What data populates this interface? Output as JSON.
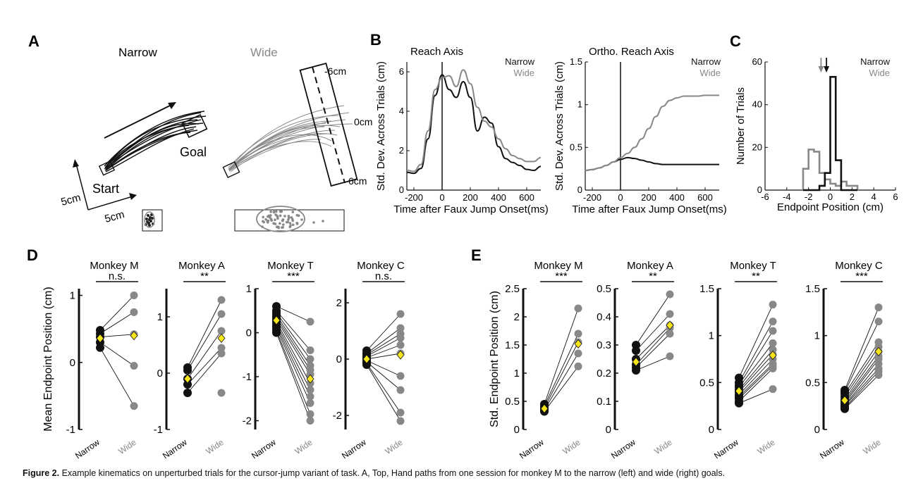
{
  "panel_labels": {
    "A": "A",
    "B": "B",
    "C": "C",
    "D": "D",
    "E": "E"
  },
  "panelA": {
    "narrow_title": "Narrow",
    "wide_title": "Wide",
    "goal_label": "Goal",
    "start_label": "Start",
    "scale_x": "5cm",
    "scale_y": "5cm",
    "tick_top": "-6cm",
    "tick_mid": "0cm",
    "tick_bot": "6cm",
    "colors": {
      "narrow": "#111111",
      "wide": "#888888"
    }
  },
  "chart_data": [
    {
      "id": "B-left",
      "type": "line",
      "title": "Reach Axis",
      "xlabel": "Time after Faux Jump Onset(ms)",
      "ylabel": "Std. Dev. Across Trials (cm)",
      "xlim": [
        -250,
        700
      ],
      "ylim": [
        0,
        6.5
      ],
      "xticks": [
        "-200",
        "0",
        "200",
        "400",
        "600"
      ],
      "yticks": [
        "0",
        "2",
        "4",
        "6"
      ],
      "legend": [
        "Narrow",
        "Wide"
      ],
      "x": [
        -250,
        -200,
        -150,
        -100,
        -50,
        0,
        50,
        100,
        150,
        200,
        250,
        300,
        350,
        400,
        450,
        500,
        550,
        600,
        650,
        700
      ],
      "series": [
        {
          "name": "Narrow",
          "color": "#111111",
          "values": [
            0.9,
            0.85,
            1.1,
            2.6,
            4.8,
            5.85,
            5.1,
            4.7,
            5.5,
            4.7,
            3.0,
            3.7,
            3.4,
            2.2,
            1.6,
            1.4,
            1.25,
            1.05,
            1.0,
            1.2
          ]
        },
        {
          "name": "Wide",
          "color": "#888888",
          "values": [
            1.0,
            0.95,
            1.3,
            3.0,
            5.1,
            5.7,
            5.8,
            5.25,
            6.1,
            5.4,
            4.2,
            3.5,
            3.2,
            2.6,
            2.1,
            1.75,
            1.6,
            1.45,
            1.45,
            1.65
          ]
        }
      ]
    },
    {
      "id": "B-right",
      "type": "line",
      "title": "Ortho. Reach Axis",
      "xlabel": "Time after Faux Jump Onset(ms)",
      "ylabel": "Std. Dev. Across Trials (cm)",
      "xlim": [
        -250,
        700
      ],
      "ylim": [
        0,
        1.5
      ],
      "xticks": [
        "-200",
        "0",
        "200",
        "400",
        "600"
      ],
      "yticks": [
        "0",
        "0.5",
        "1",
        "1.5"
      ],
      "legend": [
        "Narrow",
        "Wide"
      ],
      "x": [
        -250,
        -200,
        -150,
        -100,
        -50,
        0,
        50,
        100,
        150,
        200,
        250,
        300,
        350,
        400,
        450,
        500,
        550,
        600,
        650,
        700
      ],
      "series": [
        {
          "name": "Narrow",
          "color": "#111111",
          "values": [
            0.23,
            0.24,
            0.26,
            0.29,
            0.33,
            0.36,
            0.38,
            0.37,
            0.35,
            0.33,
            0.31,
            0.3,
            0.3,
            0.3,
            0.3,
            0.3,
            0.3,
            0.3,
            0.3,
            0.3
          ]
        },
        {
          "name": "Wide",
          "color": "#888888",
          "values": [
            0.23,
            0.24,
            0.26,
            0.29,
            0.33,
            0.38,
            0.43,
            0.5,
            0.6,
            0.72,
            0.86,
            0.98,
            1.05,
            1.08,
            1.1,
            1.1,
            1.1,
            1.11,
            1.11,
            1.11
          ]
        }
      ]
    },
    {
      "id": "C",
      "type": "histogram",
      "xlabel": "Endpoint Position (cm)",
      "ylabel": "Number of Trials",
      "xlim": [
        -6,
        6
      ],
      "ylim": [
        0,
        60
      ],
      "xticks": [
        "-6",
        "-4",
        "-2",
        "0",
        "2",
        "4",
        "6"
      ],
      "yticks": [
        "0",
        "20",
        "40",
        "60"
      ],
      "legend": [
        "Narrow",
        "Wide"
      ],
      "bin_edges": [
        -2.5,
        -2,
        -1.5,
        -1,
        -0.5,
        0,
        0.5,
        1,
        1.5,
        2,
        2.5
      ],
      "series": [
        {
          "name": "Narrow",
          "color": "#111111",
          "counts": [
            0,
            0,
            0,
            2,
            8,
            53,
            14,
            0,
            0,
            0
          ]
        },
        {
          "name": "Wide",
          "color": "#888888",
          "counts": [
            10,
            19,
            18,
            8,
            5,
            3,
            2,
            4,
            2,
            2
          ]
        }
      ],
      "arrows": {
        "narrow_mean": -0.35,
        "wide_mean": -0.85
      }
    },
    {
      "id": "D",
      "type": "scatter",
      "ylabel": "Mean Endpoint Position (cm)",
      "conditions": [
        "Narrow",
        "Wide"
      ],
      "subplots": [
        {
          "title": "Monkey M",
          "sig": "n.s.",
          "ylim": [
            -1,
            1.1
          ],
          "yticks": [
            "-1",
            "0",
            "1"
          ],
          "narrow": [
            0.48,
            0.43,
            0.38,
            0.3,
            0.22
          ],
          "wide": [
            1.0,
            0.75,
            0.42,
            -0.05,
            -0.65
          ],
          "narrow_mean": 0.36,
          "wide_mean": 0.4
        },
        {
          "title": "Monkey A",
          "sig": "**",
          "ylim": [
            -1,
            1.5
          ],
          "yticks": [
            "-1",
            "0",
            "1"
          ],
          "narrow": [
            0.1,
            0.05,
            -0.1,
            -0.2,
            -0.35
          ],
          "wide": [
            1.3,
            1.05,
            0.75,
            0.45,
            0.35,
            -0.35
          ],
          "narrow_mean": -0.1,
          "wide_mean": 0.62
        },
        {
          "title": "Monkey T",
          "sig": "***",
          "ylim": [
            -2.2,
            1
          ],
          "yticks": [
            "-2",
            "-1",
            "0",
            "1"
          ],
          "narrow": [
            0.6,
            0.5,
            0.45,
            0.4,
            0.35,
            0.3,
            0.25,
            0.2,
            0.15,
            0.1,
            0.05,
            0.0
          ],
          "wide": [
            0.25,
            -0.4,
            -0.6,
            -0.75,
            -0.85,
            -0.95,
            -1.15,
            -1.3,
            -1.45,
            -1.6,
            -1.85,
            -2.0
          ],
          "narrow_mean": 0.28,
          "wide_mean": -1.05
        },
        {
          "title": "Monkey C",
          "sig": "n.s.",
          "ylim": [
            -2.5,
            2.5
          ],
          "yticks": [
            "-2",
            "0",
            "2"
          ],
          "narrow": [
            0.3,
            0.2,
            0.15,
            0.1,
            0.05,
            0.0,
            -0.05,
            -0.1,
            -0.15,
            -0.2
          ],
          "wide": [
            1.6,
            1.1,
            0.9,
            0.75,
            0.5,
            0.2,
            -0.6,
            -1.1,
            -1.9,
            -2.2
          ],
          "narrow_mean": 0.0,
          "wide_mean": 0.15
        }
      ]
    },
    {
      "id": "E",
      "type": "scatter",
      "ylabel": "Std. Endpoint Position (cm)",
      "conditions": [
        "Narrow",
        "Wide"
      ],
      "subplots": [
        {
          "title": "Monkey M",
          "sig": "***",
          "ylim": [
            0,
            2.5
          ],
          "yticks": [
            "0",
            "0.5",
            "1",
            "1.5",
            "2",
            "2.5"
          ],
          "narrow": [
            0.45,
            0.42,
            0.38,
            0.35,
            0.32
          ],
          "wide": [
            2.15,
            1.7,
            1.55,
            1.35,
            1.12
          ],
          "narrow_mean": 0.37,
          "wide_mean": 1.52
        },
        {
          "title": "Monkey A",
          "sig": "**",
          "ylim": [
            0,
            0.5
          ],
          "yticks": [
            "0",
            "0.1",
            "0.2",
            "0.3",
            "0.4",
            "0.5"
          ],
          "narrow": [
            0.3,
            0.28,
            0.25,
            0.23,
            0.22,
            0.21
          ],
          "wide": [
            0.48,
            0.41,
            0.37,
            0.36,
            0.34,
            0.26
          ],
          "narrow_mean": 0.24,
          "wide_mean": 0.37
        },
        {
          "title": "Monkey T",
          "sig": "**",
          "ylim": [
            0,
            1.5
          ],
          "yticks": [
            "0",
            "0.5",
            "1",
            "1.5"
          ],
          "narrow": [
            0.55,
            0.5,
            0.47,
            0.45,
            0.42,
            0.4,
            0.37,
            0.35,
            0.33,
            0.3,
            0.28
          ],
          "wide": [
            1.33,
            1.15,
            1.05,
            0.92,
            0.85,
            0.8,
            0.75,
            0.7,
            0.68,
            0.65,
            0.43
          ],
          "narrow_mean": 0.41,
          "wide_mean": 0.79
        },
        {
          "title": "Monkey C",
          "sig": "***",
          "ylim": [
            0,
            1.5
          ],
          "yticks": [
            "0",
            "0.5",
            "1",
            "1.5"
          ],
          "narrow": [
            0.42,
            0.4,
            0.38,
            0.35,
            0.32,
            0.3,
            0.28,
            0.26,
            0.25,
            0.23,
            0.22
          ],
          "wide": [
            1.3,
            1.15,
            0.93,
            0.88,
            0.83,
            0.78,
            0.75,
            0.7,
            0.65,
            0.62,
            0.58
          ],
          "narrow_mean": 0.31,
          "wide_mean": 0.83
        }
      ]
    }
  ],
  "caption": {
    "fig_label": "Figure 2.",
    "text": "Example kinematics on unperturbed trials for the cursor-jump variant of task. A, Top, Hand paths from one session for monkey M to the narrow (left) and wide (right) goals."
  }
}
